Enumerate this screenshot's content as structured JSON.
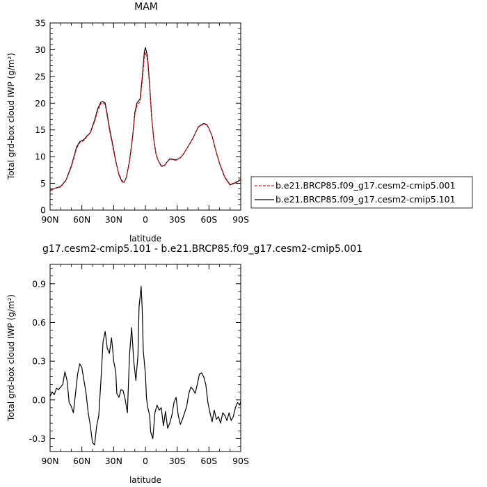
{
  "chart_data": [
    {
      "type": "line",
      "title": "MAM",
      "xlabel": "latitude",
      "ylabel": "Total grd-box cloud IWP (g/m²)",
      "xlim": [
        90,
        -90
      ],
      "ylim": [
        0,
        35
      ],
      "xticks": [
        90,
        60,
        30,
        0,
        -30,
        -60,
        -90
      ],
      "xtick_labels": [
        "90N",
        "60N",
        "30N",
        "0",
        "30S",
        "60S",
        "90S"
      ],
      "yticks": [
        0,
        5,
        10,
        15,
        20,
        25,
        30,
        35
      ],
      "ytick_labels": [
        "0",
        "5",
        "10",
        "15",
        "20",
        "25",
        "30",
        "35"
      ],
      "legend_position": "right",
      "series": [
        {
          "name": "b.e21.BRCP85.f09_g17.cesm2-cmip5.001",
          "color": "#e02020",
          "dash": "dashed",
          "x": [
            90,
            85,
            80,
            75,
            70,
            65,
            62,
            58,
            55,
            52,
            48,
            45,
            42,
            40,
            38,
            36,
            34,
            31,
            28,
            25,
            22,
            20,
            18,
            15,
            12,
            10,
            8,
            5,
            3,
            1,
            0,
            -2,
            -4,
            -6,
            -8,
            -10,
            -12,
            -15,
            -18,
            -20,
            -23,
            -26,
            -28,
            -30,
            -33,
            -36,
            -40,
            -45,
            -50,
            -55,
            -58,
            -60,
            -63,
            -66,
            -70,
            -75,
            -80,
            -85,
            -90
          ],
          "y": [
            3.6,
            4.1,
            4.3,
            5.5,
            8.0,
            11.5,
            12.6,
            13.0,
            13.8,
            14.4,
            16.5,
            18.6,
            19.9,
            20.1,
            19.7,
            17.5,
            15.0,
            12.0,
            9.0,
            6.8,
            5.5,
            5.3,
            6.0,
            9.0,
            13.5,
            17.8,
            19.5,
            20.3,
            24.0,
            28.5,
            29.5,
            28.0,
            23.0,
            17.0,
            13.0,
            10.5,
            9.3,
            8.3,
            8.4,
            8.9,
            9.5,
            9.4,
            9.3,
            9.4,
            9.8,
            10.5,
            11.8,
            13.5,
            15.5,
            16.1,
            15.9,
            15.3,
            13.8,
            11.5,
            8.8,
            6.2,
            4.8,
            5.2,
            5.8
          ]
        },
        {
          "name": "b.e21.BRCP85.f09_g17.cesm2-cmip5.101",
          "color": "#000000",
          "dash": "solid",
          "x": [
            90,
            85,
            80,
            75,
            70,
            65,
            62,
            58,
            55,
            52,
            48,
            45,
            42,
            40,
            38,
            36,
            34,
            31,
            28,
            25,
            22,
            20,
            18,
            15,
            12,
            10,
            8,
            5,
            3,
            1,
            0,
            -2,
            -4,
            -6,
            -8,
            -10,
            -12,
            -15,
            -18,
            -20,
            -23,
            -26,
            -28,
            -30,
            -33,
            -36,
            -40,
            -45,
            -50,
            -55,
            -58,
            -60,
            -63,
            -66,
            -70,
            -75,
            -80,
            -85,
            -90
          ],
          "y": [
            3.7,
            4.1,
            4.4,
            5.6,
            8.2,
            11.8,
            12.8,
            13.2,
            13.9,
            14.5,
            16.8,
            19.0,
            20.2,
            20.3,
            20.0,
            17.9,
            15.4,
            12.4,
            9.2,
            6.6,
            5.3,
            5.2,
            6.1,
            9.2,
            13.9,
            18.2,
            20.0,
            20.8,
            24.8,
            29.6,
            30.4,
            28.8,
            23.4,
            17.2,
            13.1,
            10.5,
            9.3,
            8.2,
            8.3,
            8.9,
            9.6,
            9.5,
            9.4,
            9.5,
            9.8,
            10.5,
            11.8,
            13.5,
            15.6,
            16.2,
            16.0,
            15.3,
            13.8,
            11.5,
            8.7,
            6.1,
            4.7,
            5.1,
            5.7
          ]
        }
      ]
    },
    {
      "type": "line",
      "title": "g17.cesm2-cmip5.101 - b.e21.BRCP85.f09_g17.cesm2-cmip5.001",
      "xlabel": "latitude",
      "ylabel": "Total grd-box cloud IWP (g/m²)",
      "xlim": [
        90,
        -90
      ],
      "ylim": [
        -0.4,
        1.05
      ],
      "xticks": [
        90,
        60,
        30,
        0,
        -30,
        -60,
        -90
      ],
      "xtick_labels": [
        "90N",
        "60N",
        "30N",
        "0",
        "30S",
        "60S",
        "90S"
      ],
      "yticks": [
        -0.3,
        0,
        0.3,
        0.6,
        0.9
      ],
      "ytick_labels": [
        "-0.3",
        "0.0",
        "0.3",
        "0.6",
        "0.9"
      ],
      "series": [
        {
          "color": "#000000",
          "dash": "solid",
          "x": [
            90,
            88,
            86,
            84,
            82,
            80,
            78,
            76,
            74,
            72,
            70,
            68,
            66,
            64,
            62,
            60,
            58,
            56,
            54,
            52,
            50,
            48,
            46,
            44,
            42,
            40,
            38,
            36,
            34,
            32,
            31,
            30,
            28,
            27,
            25,
            23,
            21,
            19,
            17,
            15,
            13,
            11,
            9,
            7,
            6,
            4,
            3,
            2,
            0,
            -1,
            -2,
            -4,
            -5,
            -7,
            -9,
            -11,
            -13,
            -15,
            -17,
            -19,
            -21,
            -23,
            -25,
            -27,
            -29,
            -31,
            -33,
            -35,
            -37,
            -39,
            -41,
            -43,
            -45,
            -47,
            -49,
            -51,
            -53,
            -55,
            -57,
            -59,
            -61,
            -63,
            -65,
            -67,
            -69,
            -71,
            -73,
            -75,
            -77,
            -79,
            -81,
            -83,
            -85,
            -87,
            -89,
            -90
          ],
          "y": [
            0.03,
            0.06,
            0.04,
            0.09,
            0.08,
            0.1,
            0.12,
            0.22,
            0.15,
            -0.02,
            -0.05,
            -0.1,
            0.05,
            0.2,
            0.28,
            0.25,
            0.15,
            0.05,
            -0.1,
            -0.2,
            -0.33,
            -0.35,
            -0.2,
            -0.12,
            0.15,
            0.45,
            0.53,
            0.4,
            0.36,
            0.48,
            0.4,
            0.3,
            0.22,
            0.05,
            0.02,
            0.08,
            0.07,
            0.0,
            -0.1,
            0.35,
            0.56,
            0.3,
            0.15,
            0.35,
            0.72,
            0.88,
            0.7,
            0.38,
            0.2,
            0.02,
            -0.05,
            -0.12,
            -0.25,
            -0.3,
            -0.1,
            -0.04,
            -0.08,
            -0.06,
            -0.2,
            -0.09,
            -0.22,
            -0.18,
            -0.12,
            -0.02,
            0.02,
            -0.12,
            -0.19,
            -0.15,
            -0.1,
            -0.05,
            0.05,
            0.1,
            0.08,
            0.05,
            0.12,
            0.2,
            0.21,
            0.18,
            0.12,
            -0.02,
            -0.1,
            -0.17,
            -0.08,
            -0.15,
            -0.13,
            -0.18,
            -0.1,
            -0.12,
            -0.16,
            -0.1,
            -0.16,
            -0.13,
            -0.06,
            -0.02,
            -0.04,
            -0.01
          ]
        }
      ]
    }
  ]
}
